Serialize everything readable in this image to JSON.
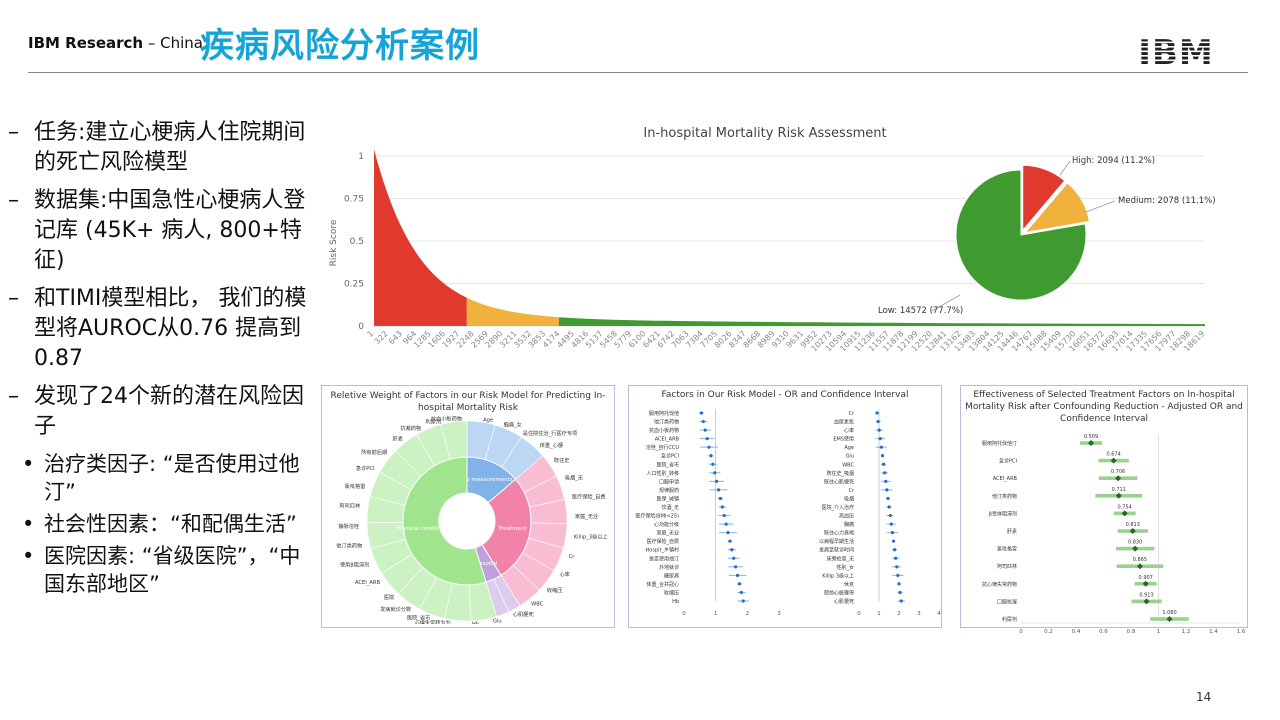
{
  "header": {
    "brand_bold": "IBM Research",
    "brand_rest": " – China",
    "title": "疾病风险分析案例",
    "logo_text": "IBM"
  },
  "bullets": [
    {
      "dash": "–",
      "text": "任务:建立心梗病人住院期间的死亡风险模型"
    },
    {
      "dash": "–",
      "text": "数据集:中国急性心梗病人登记库 (45K+ 病人, 800+特征)"
    },
    {
      "dash": "–",
      "text": "和TIMI模型相比， 我们的模型将AUROC从0.76 提高到 0.87"
    },
    {
      "dash": "–",
      "text": "发现了24个新的潜在风险因子"
    }
  ],
  "sub_bullets": [
    {
      "dot": "•",
      "text": "治疗类因子: “是否使用过他汀”"
    },
    {
      "dot": "•",
      "text": "社会性因素：“和配偶生活”"
    },
    {
      "dot": "•",
      "text": "医院因素: “省级医院”，“中国东部地区”"
    }
  ],
  "page_number": "14",
  "colors": {
    "high": "#e03a2e",
    "medium": "#f0b23c",
    "low": "#3f9a2f",
    "title_blue": "#16a4d8"
  },
  "chart_data": [
    {
      "type": "area",
      "title": "In-hospital Mortality Risk Assessment",
      "ylabel": "Risk Score",
      "ylim": [
        0,
        1
      ],
      "yticks": [
        "1",
        "0.75",
        "0.5",
        "0.25",
        "0"
      ],
      "xticks": [
        "1",
        "322",
        "643",
        "964",
        "1285",
        "1606",
        "1927",
        "2248",
        "2569",
        "2890",
        "3211",
        "3532",
        "3853",
        "4174",
        "4495",
        "4816",
        "5137",
        "5458",
        "5779",
        "6100",
        "6421",
        "6742",
        "7063",
        "7384",
        "7705",
        "8026",
        "8347",
        "8668",
        "8989",
        "9310",
        "9631",
        "9952",
        "10273",
        "10594",
        "10915",
        "11236",
        "11557",
        "11878",
        "12199",
        "12520",
        "12841",
        "13162",
        "13483",
        "13804",
        "14125",
        "14446",
        "14767",
        "15088",
        "15409",
        "15730",
        "16051",
        "16372",
        "16693",
        "17014",
        "17335",
        "17656",
        "17977",
        "18298",
        "18619"
      ],
      "segments": [
        {
          "name": "High",
          "from": 1,
          "to": 2094,
          "color": "#e03a2e"
        },
        {
          "name": "Medium",
          "from": 2094,
          "to": 4172,
          "color": "#f0b23c"
        },
        {
          "name": "Low",
          "from": 4172,
          "to": 18744,
          "color": "#3f9a2f"
        }
      ],
      "pie": [
        {
          "label": "High: 2094 (11.2%)",
          "value": 2094,
          "color": "#e03a2e"
        },
        {
          "label": "Medium: 2078 (11.1%)",
          "value": 2078,
          "color": "#f0b23c"
        },
        {
          "label": "Low: 14572 (77.7%)",
          "value": 14572,
          "color": "#3f9a2f"
        }
      ]
    },
    {
      "type": "pie",
      "title": "Reletive Weight of Factors in our Risk Model for Predicting In-hospital Mortality Risk",
      "inner": [
        {
          "label": "Lab measurements",
          "value": 10,
          "color": "#6aa6e6"
        },
        {
          "label": "Treatment",
          "value": 20,
          "color": "#f06c9b"
        },
        {
          "label": "Hospital",
          "value": 3,
          "color": "#b38fd6"
        },
        {
          "label": "Physical condition",
          "value": 40,
          "color": "#8fe07a"
        }
      ],
      "outer_labels": [
        "Age",
        "胸痛_女",
        "是住院住治_行医疗专项",
        "体重_心梗",
        "既往史",
        "吸烟_无",
        "医疗保险_自费",
        "家庭_无业",
        "Killip_3级以上",
        "Cr",
        "心率",
        "收缩压",
        "WBC",
        "心肌梗死",
        "Glu",
        "Hb",
        "心律失常转为为",
        "医院_省市",
        "发病就诊分数",
        "医院",
        "ACEI_ARB",
        "使用β阻滞剂",
        "他汀类药物",
        "静脉溶栓",
        "阿司匹林",
        "氯吡格雷",
        "急诊PCI",
        "所有前后期",
        "肝素",
        "抗凝药物",
        "利尿剂",
        "抗血小板药物"
      ]
    },
    {
      "type": "scatter",
      "title": "Factors in Our Risk Model - OR and Confidence Interval",
      "left_labels": [
        "服用阿托伐他",
        "他汀类药物",
        "抗血小板药物",
        "ACEI_ARB",
        "溶栓_自行CCU",
        "急诊PCI",
        "医院_省市",
        "人口性别_转移",
        "口服申请",
        "规律服药",
        "医保_城镇",
        "饮酒_无",
        "医疗保险(BMI<25)",
        "心功能分级",
        "家庭_无业",
        "医疗保险_自费",
        "Hospit_乡镇村",
        "是否使用他汀",
        "外地就诊",
        "糖尿病",
        "体重_合并冠心",
        "收缩压",
        "Hb"
      ],
      "right_labels": [
        "Cr",
        "血尿素氮",
        "心率",
        "EMS使用",
        "Age",
        "Glu",
        "WBC",
        "既往史_吸烟",
        "既往心肌梗死",
        "Cr",
        "吸烟",
        "医院_介入治疗",
        "高血压",
        "胸痛",
        "既往心力衰竭",
        "以病程早期生活",
        "发病至就诊时间",
        "床旁检查_无",
        "性别_女",
        "Killip 3级以上",
        "休克",
        "院前心脏骤停",
        "心肌梗死"
      ],
      "left_xticks": [
        "0",
        "1",
        "2",
        "3"
      ],
      "right_xticks": [
        "0",
        "1",
        "2",
        "3",
        "4"
      ]
    },
    {
      "type": "scatter",
      "title": "Effectiveness of Selected Treatment Factors on In-hospital Mortality Risk after Confounding Reduction - Adjusted OR and Confidence Interval",
      "categories": [
        "服用阿托伐他汀",
        "急诊PCI",
        "ACEI_ARB",
        "他汀类药物",
        "β受体阻滞剂",
        "肝素",
        "氯吡格雷",
        "阿司匹林",
        "抗心律失常药物",
        "口服抗凝",
        "利尿剂"
      ],
      "values": [
        0.509,
        0.674,
        0.706,
        0.711,
        0.754,
        0.813,
        0.83,
        0.865,
        0.907,
        0.913,
        1.08
      ],
      "value_labels": [
        "0.509",
        "0.674",
        "0.706",
        "0.711",
        "0.754",
        "0.813",
        "0.830",
        "0.865",
        "0.907",
        "0.913",
        "1.080"
      ],
      "xlim": [
        0,
        1.6
      ],
      "xticks": [
        "0",
        "0.2",
        "0.4",
        "0.6",
        "0.8",
        "1",
        "1.2",
        "1.4",
        "1.6"
      ]
    }
  ]
}
